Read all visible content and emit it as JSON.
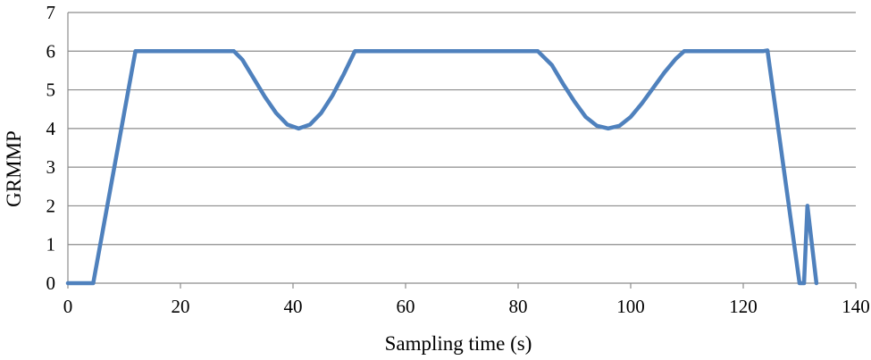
{
  "chart_data": {
    "type": "line",
    "title": "",
    "xlabel": "Sampling time (s)",
    "ylabel": "GRMMP",
    "xlim": [
      0,
      140
    ],
    "ylim": [
      0,
      7
    ],
    "x_ticks": [
      0,
      20,
      40,
      60,
      80,
      100,
      120,
      140
    ],
    "y_ticks": [
      0,
      1,
      2,
      3,
      4,
      5,
      6,
      7
    ],
    "grid": "horizontal",
    "legend": "none",
    "series": [
      {
        "color": "#4f81bd",
        "points": [
          [
            0,
            0
          ],
          [
            4.5,
            0
          ],
          [
            12,
            6
          ],
          [
            29.5,
            6
          ],
          [
            31,
            5.78
          ],
          [
            33,
            5.3
          ],
          [
            35,
            4.82
          ],
          [
            37,
            4.4
          ],
          [
            39,
            4.1
          ],
          [
            41,
            4.0
          ],
          [
            43,
            4.1
          ],
          [
            45,
            4.4
          ],
          [
            47,
            4.85
          ],
          [
            49,
            5.4
          ],
          [
            51,
            6
          ],
          [
            52,
            6
          ],
          [
            83.5,
            6
          ],
          [
            86,
            5.64
          ],
          [
            88,
            5.15
          ],
          [
            90,
            4.7
          ],
          [
            92,
            4.3
          ],
          [
            94,
            4.07
          ],
          [
            96,
            4.0
          ],
          [
            98,
            4.07
          ],
          [
            100,
            4.3
          ],
          [
            102,
            4.65
          ],
          [
            104,
            5.05
          ],
          [
            106,
            5.45
          ],
          [
            108,
            5.8
          ],
          [
            109.5,
            6
          ],
          [
            123.5,
            6
          ],
          [
            124.3,
            6.02
          ],
          [
            130,
            0
          ],
          [
            130.8,
            0
          ],
          [
            131.4,
            2
          ],
          [
            133,
            0
          ]
        ]
      }
    ]
  }
}
